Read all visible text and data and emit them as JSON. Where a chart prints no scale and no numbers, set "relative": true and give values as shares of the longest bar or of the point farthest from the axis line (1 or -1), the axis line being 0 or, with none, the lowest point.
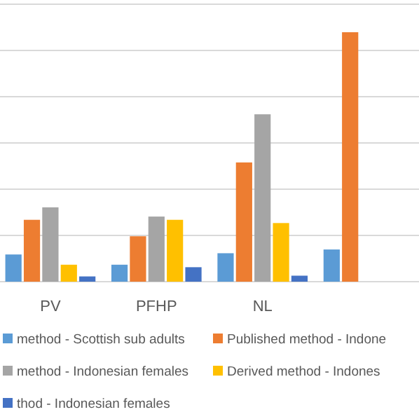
{
  "chart_data": {
    "type": "bar",
    "relative": true,
    "grid": true,
    "legend": "bottom",
    "categories": [
      "PV",
      "PFHP",
      "NL",
      null
    ],
    "series": [
      {
        "name": "method - Scottish sub adults",
        "color": "#5b9bd5",
        "values": [
          0.109,
          0.068,
          0.114,
          0.129
        ]
      },
      {
        "name": "Published method - Indone",
        "color": "#ed7d31",
        "values": [
          0.248,
          0.182,
          0.478,
          1
        ]
      },
      {
        "name": "method - Indonesian females",
        "color": "#a5a5a5",
        "values": [
          0.298,
          0.261,
          0.671,
          null
        ]
      },
      {
        "name": "Derived method - Indones",
        "color": "#ffc000",
        "values": [
          0.068,
          0.248,
          0.235,
          null
        ]
      },
      {
        "name": "thod - Indonesian females",
        "color": "#4472c4",
        "values": [
          0.021,
          0.058,
          0.024,
          null
        ]
      }
    ]
  }
}
